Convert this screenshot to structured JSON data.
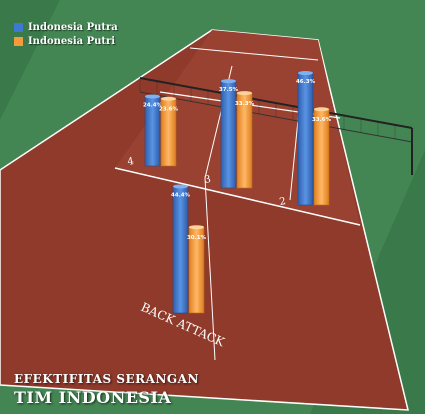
{
  "title_line1": "EFEKTIFITAS SERANGAN",
  "title_line2": "TIM INDONESIA",
  "court_label": "BACK ATTACK",
  "zone_labels": [
    "4",
    "3",
    "2"
  ],
  "colors": {
    "putra": "#3f78d0",
    "putri": "#f59b3b",
    "court": "#8f3a2b",
    "outer": "#3a7a4a"
  },
  "chart_data": {
    "type": "bar",
    "categories": [
      "4",
      "3",
      "2",
      "Back Attack"
    ],
    "series": [
      {
        "name": "Indonesia Putra",
        "values": [
          24.4,
          37.5,
          46.3,
          44.4
        ]
      },
      {
        "name": "Indonesia Putri",
        "values": [
          23.6,
          33.3,
          33.6,
          30.1
        ]
      }
    ],
    "value_labels": {
      "Indonesia Putra": [
        "24.4%",
        "37.5%",
        "46.3%",
        "44.4%"
      ],
      "Indonesia Putri": [
        "23.6%",
        "33.3%",
        "33.6%",
        "30.1%"
      ]
    },
    "legend": "top-left",
    "grid": false
  }
}
